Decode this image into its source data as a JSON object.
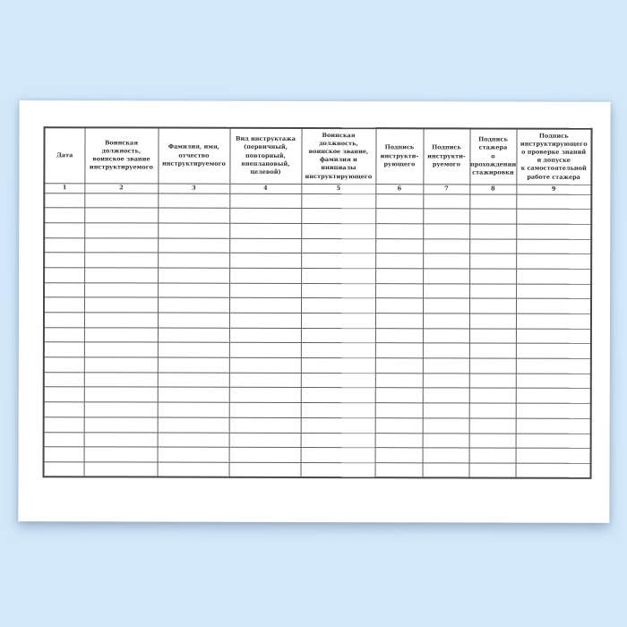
{
  "colors": {
    "backdrop": "#d4e8fb",
    "paper": "#ffffff",
    "ink": "#2e2e2e",
    "grid_line": "#5f5f5f"
  },
  "table": {
    "columns": [
      {
        "num": "1",
        "header": "Дата"
      },
      {
        "num": "2",
        "header": "Воинская должность,\nвоинское звание\nинструктируемого"
      },
      {
        "num": "3",
        "header": "Фамилия, имя,\nотчество\nинструктируемого"
      },
      {
        "num": "4",
        "header": "Вид инструктажа\n(первичный,\nповторный,\nвнеплановый,\nцелевой)"
      },
      {
        "num": "5",
        "header": "Воинская должность,\nвоинское звание,\nфамилия и инициалы\nинструктирующего"
      },
      {
        "num": "6",
        "header": "Подпись\nинструкти-\nрующего"
      },
      {
        "num": "7",
        "header": "Подпись\nинструкти-\nруемого"
      },
      {
        "num": "8",
        "header": "Подпись\nстажера\nо прохождении\nстажировки"
      },
      {
        "num": "9",
        "header": "Подпись\nинструктирующего\nо проверке знаний\nи допуске\nк самостоятельной\nработе стажера"
      }
    ],
    "empty_rows": 19,
    "empty_cell_value": ""
  }
}
